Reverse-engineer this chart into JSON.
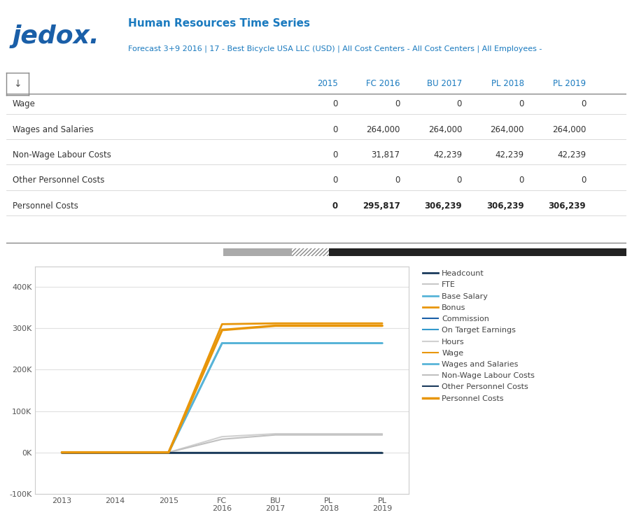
{
  "title": "Human Resources Time Series",
  "subtitle": "Forecast 3+9 2016 | 17 - Best Bicycle USA LLC (USD) | All Cost Centers - All Cost Centers | All Employees -",
  "logo_text": "jedox.",
  "logo_color": "#1a5fa8",
  "header_color": "#1a7abf",
  "table_columns": [
    "2015",
    "FC 2016",
    "BU 2017",
    "PL 2018",
    "PL 2019"
  ],
  "table_rows": [
    {
      "label": "Wage",
      "values": [
        0,
        0,
        0,
        0,
        0
      ]
    },
    {
      "label": "Wages and Salaries",
      "values": [
        0,
        264000,
        264000,
        264000,
        264000
      ]
    },
    {
      "label": "Non-Wage Labour Costs",
      "values": [
        0,
        31817,
        42239,
        42239,
        42239
      ]
    },
    {
      "label": "Other Personnel Costs",
      "values": [
        0,
        0,
        0,
        0,
        0
      ]
    },
    {
      "label": "Personnel Costs",
      "values": [
        0,
        295817,
        306239,
        306239,
        306239
      ]
    }
  ],
  "x_labels": [
    "2013",
    "2014",
    "2015",
    "FC\n2016",
    "BU\n2017",
    "PL\n2018",
    "PL\n2019"
  ],
  "x_positions": [
    0,
    1,
    2,
    3,
    4,
    5,
    6
  ],
  "series": [
    {
      "name": "Headcount",
      "color": "#1a3a5c",
      "linewidth": 2.0,
      "values": [
        0,
        0,
        0,
        0,
        0,
        0,
        0
      ]
    },
    {
      "name": "FTE",
      "color": "#c8c8c8",
      "linewidth": 1.5,
      "values": [
        0,
        0,
        0,
        0,
        0,
        0,
        0
      ]
    },
    {
      "name": "Base Salary",
      "color": "#58b4d8",
      "linewidth": 2.0,
      "values": [
        0,
        0,
        0,
        264000,
        264000,
        264000,
        264000
      ]
    },
    {
      "name": "Bonus",
      "color": "#e8960a",
      "linewidth": 2.0,
      "values": [
        0,
        0,
        0,
        310000,
        312000,
        312000,
        312000
      ]
    },
    {
      "name": "Commission",
      "color": "#1a5fa8",
      "linewidth": 1.5,
      "values": [
        0,
        0,
        0,
        0,
        0,
        0,
        0
      ]
    },
    {
      "name": "On Target Earnings",
      "color": "#3399cc",
      "linewidth": 1.5,
      "values": [
        0,
        0,
        0,
        0,
        0,
        0,
        0
      ]
    },
    {
      "name": "Hours",
      "color": "#d0d0d0",
      "linewidth": 1.5,
      "values": [
        0,
        0,
        0,
        38000,
        45000,
        45000,
        45000
      ]
    },
    {
      "name": "Wage",
      "color": "#e8960a",
      "linewidth": 1.5,
      "values": [
        0,
        0,
        0,
        0,
        0,
        0,
        0
      ]
    },
    {
      "name": "Wages and Salaries",
      "color": "#58b4d8",
      "linewidth": 2.0,
      "values": [
        0,
        0,
        0,
        264000,
        264000,
        264000,
        264000
      ]
    },
    {
      "name": "Non-Wage Labour Costs",
      "color": "#c0c0c0",
      "linewidth": 1.5,
      "values": [
        0,
        0,
        0,
        31817,
        42239,
        42239,
        42239
      ]
    },
    {
      "name": "Other Personnel Costs",
      "color": "#1a3a5c",
      "linewidth": 1.5,
      "values": [
        0,
        0,
        0,
        0,
        0,
        0,
        0
      ]
    },
    {
      "name": "Personnel Costs",
      "color": "#e8960a",
      "linewidth": 2.5,
      "values": [
        0,
        0,
        0,
        295817,
        306239,
        306239,
        306239
      ]
    }
  ],
  "ylim": [
    -100000,
    450000
  ],
  "yticks": [
    -100000,
    0,
    100000,
    200000,
    300000,
    400000
  ],
  "ytick_labels": [
    "-100K",
    "0K",
    "100K",
    "200K",
    "300K",
    "400K"
  ],
  "chart_bg": "#ffffff",
  "chart_border": "#cccccc",
  "grid_color": "#e0e0e0"
}
